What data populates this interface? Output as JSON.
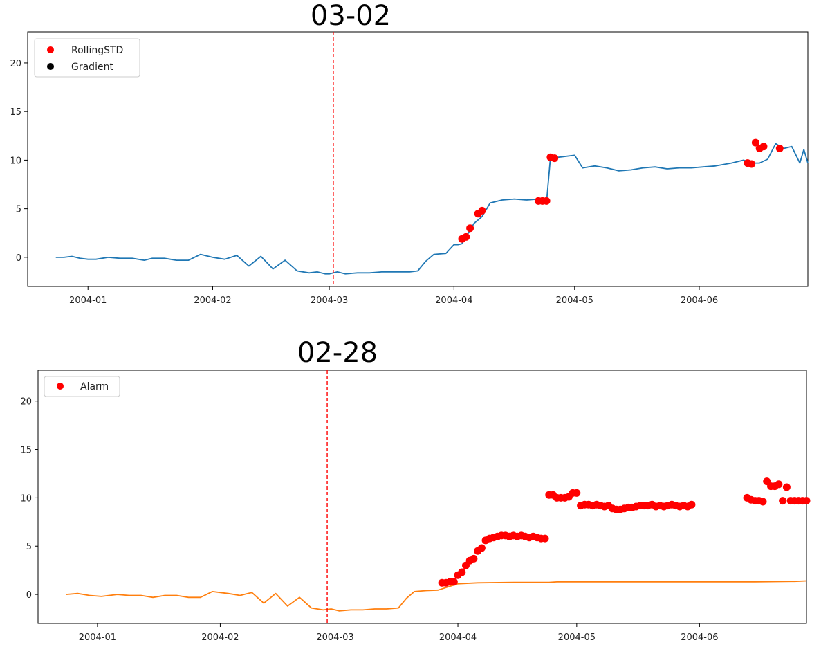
{
  "chart_data": [
    {
      "type": "line",
      "title": "03-02",
      "xlabel": "",
      "ylabel": "",
      "x_ticks": [
        "2004-01",
        "2004-02",
        "2004-03",
        "2004-04",
        "2004-05",
        "2004-06"
      ],
      "y_ticks": [
        0,
        5,
        10,
        15,
        20
      ],
      "xlim": [
        "2003-12-17",
        "2004-06-28"
      ],
      "ylim": [
        -3.0,
        23.2
      ],
      "grid": false,
      "legend_position": "top-left",
      "legend": [
        "RollingSTD",
        "Gradient"
      ],
      "vline": {
        "x": "2004-03-02",
        "color": "#ff0000",
        "style": "dashed"
      },
      "series": [
        {
          "name": "",
          "kind": "line",
          "color": "#1f77b4",
          "points": [
            [
              "2003-12-24",
              0.0
            ],
            [
              "2003-12-26",
              0.0
            ],
            [
              "2003-12-28",
              0.1
            ],
            [
              "2003-12-30",
              -0.1
            ],
            [
              "2004-01-01",
              -0.2
            ],
            [
              "2004-01-03",
              -0.2
            ],
            [
              "2004-01-06",
              0.0
            ],
            [
              "2004-01-09",
              -0.1
            ],
            [
              "2004-01-12",
              -0.1
            ],
            [
              "2004-01-15",
              -0.3
            ],
            [
              "2004-01-17",
              -0.1
            ],
            [
              "2004-01-20",
              -0.1
            ],
            [
              "2004-01-23",
              -0.3
            ],
            [
              "2004-01-26",
              -0.3
            ],
            [
              "2004-01-29",
              0.3
            ],
            [
              "2004-02-01",
              0.0
            ],
            [
              "2004-02-04",
              -0.2
            ],
            [
              "2004-02-07",
              0.2
            ],
            [
              "2004-02-10",
              -0.9
            ],
            [
              "2004-02-13",
              0.1
            ],
            [
              "2004-02-16",
              -1.2
            ],
            [
              "2004-02-19",
              -0.3
            ],
            [
              "2004-02-22",
              -1.4
            ],
            [
              "2004-02-25",
              -1.6
            ],
            [
              "2004-02-27",
              -1.5
            ],
            [
              "2004-02-29",
              -1.7
            ],
            [
              "2004-03-01",
              -1.7
            ],
            [
              "2004-03-03",
              -1.5
            ],
            [
              "2004-03-05",
              -1.7
            ],
            [
              "2004-03-08",
              -1.6
            ],
            [
              "2004-03-11",
              -1.6
            ],
            [
              "2004-03-14",
              -1.5
            ],
            [
              "2004-03-17",
              -1.5
            ],
            [
              "2004-03-19",
              -1.5
            ],
            [
              "2004-03-21",
              -1.5
            ],
            [
              "2004-03-23",
              -1.4
            ],
            [
              "2004-03-25",
              -0.4
            ],
            [
              "2004-03-27",
              0.3
            ],
            [
              "2004-03-30",
              0.4
            ],
            [
              "2004-04-01",
              1.3
            ],
            [
              "2004-04-02",
              1.3
            ],
            [
              "2004-04-03",
              1.4
            ],
            [
              "2004-04-04",
              2.1
            ],
            [
              "2004-04-06",
              3.5
            ],
            [
              "2004-04-08",
              4.2
            ],
            [
              "2004-04-10",
              5.6
            ],
            [
              "2004-04-13",
              5.9
            ],
            [
              "2004-04-16",
              6.0
            ],
            [
              "2004-04-19",
              5.9
            ],
            [
              "2004-04-22",
              6.0
            ],
            [
              "2004-04-24",
              5.6
            ],
            [
              "2004-04-25",
              10.3
            ],
            [
              "2004-04-27",
              10.3
            ],
            [
              "2004-05-01",
              10.5
            ],
            [
              "2004-05-03",
              9.2
            ],
            [
              "2004-05-06",
              9.4
            ],
            [
              "2004-05-09",
              9.2
            ],
            [
              "2004-05-12",
              8.9
            ],
            [
              "2004-05-15",
              9.0
            ],
            [
              "2004-05-18",
              9.2
            ],
            [
              "2004-05-21",
              9.3
            ],
            [
              "2004-05-24",
              9.1
            ],
            [
              "2004-05-27",
              9.2
            ],
            [
              "2004-05-30",
              9.2
            ],
            [
              "2004-06-02",
              9.3
            ],
            [
              "2004-06-05",
              9.4
            ],
            [
              "2004-06-09",
              9.7
            ],
            [
              "2004-06-12",
              10.0
            ],
            [
              "2004-06-14",
              9.7
            ],
            [
              "2004-06-16",
              9.7
            ],
            [
              "2004-06-18",
              10.1
            ],
            [
              "2004-06-20",
              11.7
            ],
            [
              "2004-06-22",
              11.2
            ],
            [
              "2004-06-24",
              11.4
            ],
            [
              "2004-06-26",
              9.7
            ],
            [
              "2004-06-27",
              11.1
            ],
            [
              "2004-06-28",
              9.7
            ]
          ]
        },
        {
          "name": "RollingSTD",
          "kind": "scatter",
          "color": "#ff0000",
          "points": [
            [
              "2004-04-03",
              1.9
            ],
            [
              "2004-04-04",
              2.1
            ],
            [
              "2004-04-05",
              3.0
            ],
            [
              "2004-04-07",
              4.5
            ],
            [
              "2004-04-08",
              4.8
            ],
            [
              "2004-04-22",
              5.8
            ],
            [
              "2004-04-23",
              5.8
            ],
            [
              "2004-04-24",
              5.8
            ],
            [
              "2004-04-25",
              10.3
            ],
            [
              "2004-04-26",
              10.2
            ],
            [
              "2004-06-13",
              9.7
            ],
            [
              "2004-06-14",
              9.6
            ],
            [
              "2004-06-15",
              11.8
            ],
            [
              "2004-06-16",
              11.2
            ],
            [
              "2004-06-17",
              11.4
            ],
            [
              "2004-06-21",
              11.2
            ]
          ]
        },
        {
          "name": "Gradient",
          "kind": "scatter",
          "color": "#000000",
          "points": []
        }
      ]
    },
    {
      "type": "line",
      "title": "02-28",
      "xlabel": "",
      "ylabel": "",
      "x_ticks": [
        "2004-01",
        "2004-02",
        "2004-03",
        "2004-04",
        "2004-05",
        "2004-06"
      ],
      "y_ticks": [
        0,
        5,
        10,
        15,
        20
      ],
      "xlim": [
        "2003-12-17",
        "2004-06-28"
      ],
      "ylim": [
        -3.0,
        23.2
      ],
      "grid": false,
      "legend_position": "top-left",
      "legend": [
        "Alarm"
      ],
      "vline": {
        "x": "2004-02-28",
        "color": "#ff0000",
        "style": "dashed"
      },
      "series": [
        {
          "name": "",
          "kind": "line",
          "color": "#1f77b4",
          "points": []
        },
        {
          "name": "",
          "kind": "line",
          "color": "#ff7f0e",
          "points": [
            [
              "2003-12-24",
              0.0
            ],
            [
              "2003-12-27",
              0.1
            ],
            [
              "2003-12-30",
              -0.1
            ],
            [
              "2004-01-02",
              -0.2
            ],
            [
              "2004-01-06",
              0.0
            ],
            [
              "2004-01-09",
              -0.1
            ],
            [
              "2004-01-12",
              -0.1
            ],
            [
              "2004-01-15",
              -0.3
            ],
            [
              "2004-01-18",
              -0.1
            ],
            [
              "2004-01-21",
              -0.1
            ],
            [
              "2004-01-24",
              -0.3
            ],
            [
              "2004-01-27",
              -0.3
            ],
            [
              "2004-01-30",
              0.3
            ],
            [
              "2004-02-03",
              0.1
            ],
            [
              "2004-02-06",
              -0.1
            ],
            [
              "2004-02-09",
              0.2
            ],
            [
              "2004-02-12",
              -0.9
            ],
            [
              "2004-02-15",
              0.1
            ],
            [
              "2004-02-18",
              -1.2
            ],
            [
              "2004-02-21",
              -0.3
            ],
            [
              "2004-02-24",
              -1.4
            ],
            [
              "2004-02-27",
              -1.6
            ],
            [
              "2004-02-29",
              -1.5
            ],
            [
              "2004-03-02",
              -1.7
            ],
            [
              "2004-03-05",
              -1.6
            ],
            [
              "2004-03-08",
              -1.6
            ],
            [
              "2004-03-11",
              -1.5
            ],
            [
              "2004-03-14",
              -1.5
            ],
            [
              "2004-03-17",
              -1.4
            ],
            [
              "2004-03-19",
              -0.4
            ],
            [
              "2004-03-21",
              0.3
            ],
            [
              "2004-03-24",
              0.4
            ],
            [
              "2004-03-27",
              0.45
            ],
            [
              "2004-04-01",
              1.1
            ],
            [
              "2004-04-06",
              1.2
            ],
            [
              "2004-04-15",
              1.25
            ],
            [
              "2004-04-24",
              1.25
            ],
            [
              "2004-04-26",
              1.3
            ],
            [
              "2004-05-10",
              1.3
            ],
            [
              "2004-06-01",
              1.3
            ],
            [
              "2004-06-15",
              1.3
            ],
            [
              "2004-06-25",
              1.35
            ],
            [
              "2004-06-28",
              1.4
            ]
          ]
        },
        {
          "name": "Alarm",
          "kind": "scatter",
          "color": "#ff0000",
          "points": [
            [
              "2004-03-28",
              1.2
            ],
            [
              "2004-03-29",
              1.2
            ],
            [
              "2004-03-30",
              1.3
            ],
            [
              "2004-03-31",
              1.3
            ],
            [
              "2004-04-01",
              2.0
            ],
            [
              "2004-04-02",
              2.3
            ],
            [
              "2004-04-03",
              3.0
            ],
            [
              "2004-04-04",
              3.5
            ],
            [
              "2004-04-05",
              3.7
            ],
            [
              "2004-04-06",
              4.5
            ],
            [
              "2004-04-07",
              4.8
            ],
            [
              "2004-04-08",
              5.6
            ],
            [
              "2004-04-09",
              5.8
            ],
            [
              "2004-04-10",
              5.9
            ],
            [
              "2004-04-11",
              6.0
            ],
            [
              "2004-04-12",
              6.1
            ],
            [
              "2004-04-13",
              6.1
            ],
            [
              "2004-04-14",
              6.0
            ],
            [
              "2004-04-15",
              6.1
            ],
            [
              "2004-04-16",
              6.0
            ],
            [
              "2004-04-17",
              6.1
            ],
            [
              "2004-04-18",
              6.0
            ],
            [
              "2004-04-19",
              5.9
            ],
            [
              "2004-04-20",
              6.0
            ],
            [
              "2004-04-21",
              5.9
            ],
            [
              "2004-04-22",
              5.8
            ],
            [
              "2004-04-23",
              5.8
            ],
            [
              "2004-04-24",
              10.3
            ],
            [
              "2004-04-25",
              10.3
            ],
            [
              "2004-04-26",
              10.0
            ],
            [
              "2004-04-27",
              10.0
            ],
            [
              "2004-04-28",
              10.0
            ],
            [
              "2004-04-29",
              10.1
            ],
            [
              "2004-04-30",
              10.5
            ],
            [
              "2004-05-01",
              10.5
            ],
            [
              "2004-05-02",
              9.2
            ],
            [
              "2004-05-03",
              9.3
            ],
            [
              "2004-05-04",
              9.3
            ],
            [
              "2004-05-05",
              9.2
            ],
            [
              "2004-05-06",
              9.3
            ],
            [
              "2004-05-07",
              9.2
            ],
            [
              "2004-05-08",
              9.1
            ],
            [
              "2004-05-09",
              9.2
            ],
            [
              "2004-05-10",
              8.9
            ],
            [
              "2004-05-11",
              8.8
            ],
            [
              "2004-05-12",
              8.8
            ],
            [
              "2004-05-13",
              8.9
            ],
            [
              "2004-05-14",
              9.0
            ],
            [
              "2004-05-15",
              9.0
            ],
            [
              "2004-05-16",
              9.1
            ],
            [
              "2004-05-17",
              9.2
            ],
            [
              "2004-05-18",
              9.2
            ],
            [
              "2004-05-19",
              9.2
            ],
            [
              "2004-05-20",
              9.3
            ],
            [
              "2004-05-21",
              9.1
            ],
            [
              "2004-05-22",
              9.2
            ],
            [
              "2004-05-23",
              9.1
            ],
            [
              "2004-05-24",
              9.2
            ],
            [
              "2004-05-25",
              9.3
            ],
            [
              "2004-05-26",
              9.2
            ],
            [
              "2004-05-27",
              9.1
            ],
            [
              "2004-05-28",
              9.2
            ],
            [
              "2004-05-29",
              9.1
            ],
            [
              "2004-05-30",
              9.3
            ],
            [
              "2004-06-13",
              10.0
            ],
            [
              "2004-06-14",
              9.8
            ],
            [
              "2004-06-15",
              9.7
            ],
            [
              "2004-06-16",
              9.7
            ],
            [
              "2004-06-17",
              9.6
            ],
            [
              "2004-06-18",
              11.7
            ],
            [
              "2004-06-19",
              11.2
            ],
            [
              "2004-06-20",
              11.2
            ],
            [
              "2004-06-21",
              11.4
            ],
            [
              "2004-06-22",
              9.7
            ],
            [
              "2004-06-23",
              11.1
            ],
            [
              "2004-06-24",
              9.7
            ],
            [
              "2004-06-25",
              9.7
            ],
            [
              "2004-06-26",
              9.7
            ],
            [
              "2004-06-27",
              9.7
            ],
            [
              "2004-06-28",
              9.7
            ]
          ]
        }
      ]
    }
  ]
}
